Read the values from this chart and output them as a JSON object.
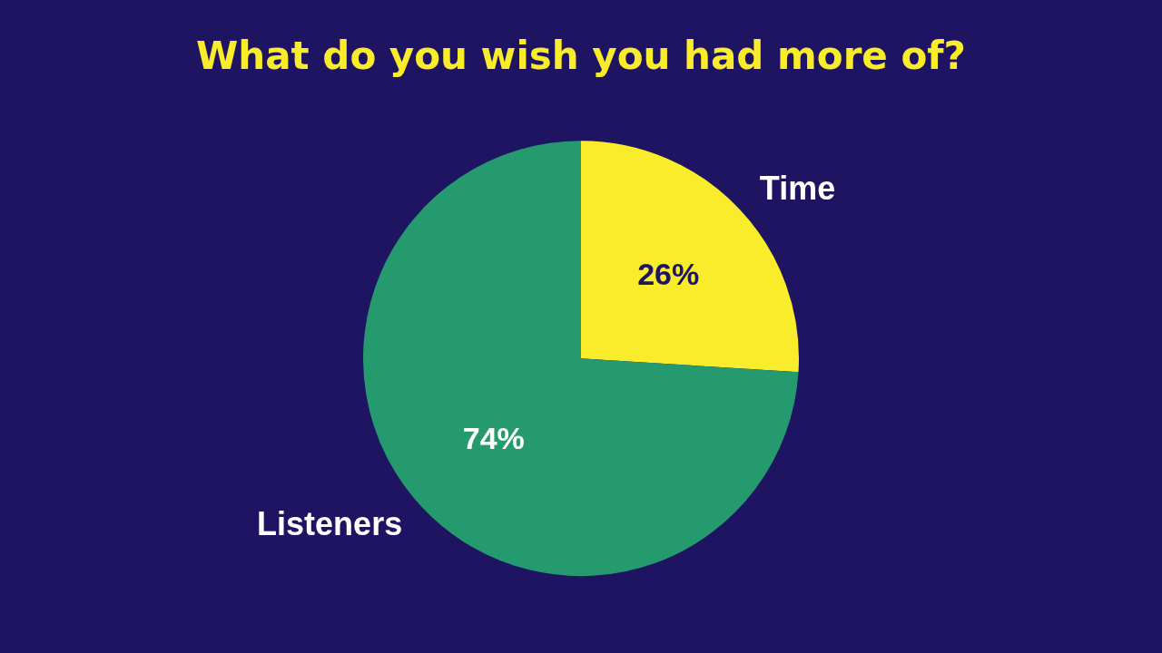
{
  "chart_data": {
    "type": "pie",
    "title": "What do you wish you had more of?",
    "categories": [
      "Time",
      "Listeners"
    ],
    "values": [
      26,
      74
    ],
    "colors": [
      "#f9ec2a",
      "#259a6f"
    ],
    "value_labels": [
      "26%",
      "74%"
    ],
    "legend": false
  }
}
